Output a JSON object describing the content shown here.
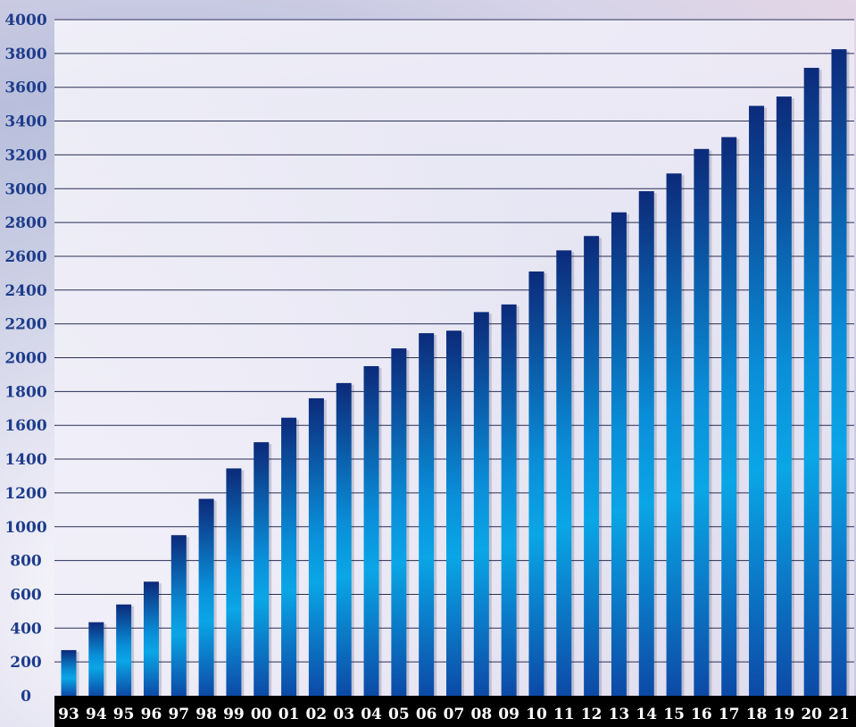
{
  "chart_data": {
    "type": "bar",
    "title": "",
    "xlabel": "",
    "ylabel": "",
    "categories": [
      "93",
      "94",
      "95",
      "96",
      "97",
      "98",
      "99",
      "00",
      "01",
      "02",
      "03",
      "04",
      "05",
      "06",
      "07",
      "08",
      "09",
      "10",
      "11",
      "12",
      "13",
      "14",
      "15",
      "16",
      "17",
      "18",
      "19",
      "20",
      "21"
    ],
    "values": [
      270,
      435,
      540,
      675,
      950,
      1165,
      1345,
      1500,
      1645,
      1760,
      1850,
      1950,
      2055,
      2145,
      2160,
      2270,
      2315,
      2510,
      2635,
      2720,
      2860,
      2985,
      3090,
      3235,
      3305,
      3490,
      3545,
      3715,
      3825
    ],
    "yticks": [
      "0",
      "200",
      "400",
      "600",
      "800",
      "1000",
      "1200",
      "1400",
      "1600",
      "1800",
      "2000",
      "2200",
      "2400",
      "2600",
      "2800",
      "3000",
      "3200",
      "3400",
      "3600",
      "3800",
      "4000"
    ],
    "ylim": [
      0,
      4000
    ],
    "grid": true,
    "legend": "none",
    "colors": {
      "bar_dark": "#0c2a7a",
      "bar_light": "#0aa6e6",
      "grid": "#2a2f55",
      "ytick": "#1d3c8c",
      "xaxis_band": "#000000",
      "xtick": "#ffffff",
      "plot_bg": "#f5f4fb"
    }
  }
}
